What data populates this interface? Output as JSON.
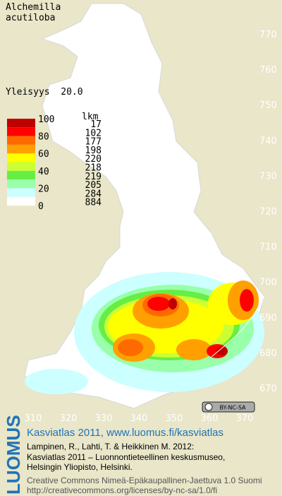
{
  "title": [
    "Alchemilla",
    "acutiloba"
  ],
  "frequency_label": "Yleisyys  20.0",
  "legend": {
    "count_header": "lkm",
    "levels": [
      100,
      80,
      60,
      40,
      20,
      0
    ],
    "counts": [
      17,
      102,
      177,
      198,
      220,
      218,
      219,
      205,
      284,
      884
    ],
    "colors": [
      "#c00000",
      "#ff0000",
      "#ff6a00",
      "#ffa000",
      "#ffff00",
      "#ccff33",
      "#66ee44",
      "#99ffaa",
      "#ccffff",
      "#ffffff"
    ]
  },
  "axes": {
    "north": [
      770,
      760,
      750,
      740,
      730,
      720,
      710,
      700,
      690,
      680,
      670
    ],
    "east": [
      310,
      320,
      330,
      340,
      350,
      360,
      370
    ]
  },
  "license_badge": "BY-NC-SA",
  "footer": {
    "brand": "LUOMUS",
    "link": "Kasviatlas 2011, www.luomus.fi/kasviatlas",
    "citation": [
      "Lampinen, R., Lahti, T. & Heikkinen M. 2012:",
      "Kasviatlas 2011 – Luonnontieteellinen keskusmuseo,",
      "Helsingin Yliopisto, Helsinki."
    ],
    "license": [
      "Creative Commons Nimeä-Epäkaupallinen-Jaettuva 1.0 Suomi",
      "http://creativecommons.org/licenses/by-nc-sa/1.0/fi"
    ]
  }
}
